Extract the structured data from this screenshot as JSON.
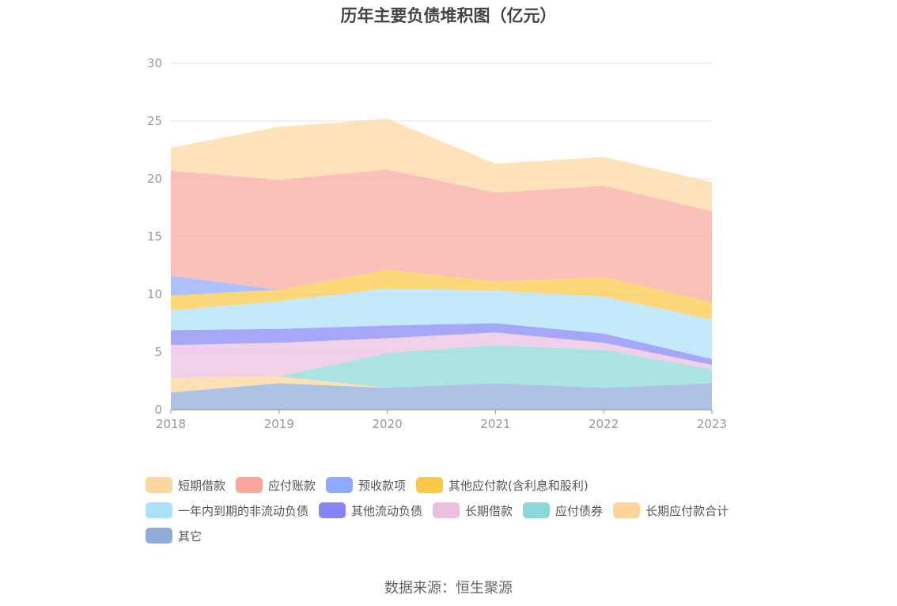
{
  "chart_data": {
    "type": "area",
    "stacked": true,
    "title": "历年主要负债堆积图（亿元）",
    "x": [
      "2018",
      "2019",
      "2020",
      "2021",
      "2022",
      "2023"
    ],
    "ylim": [
      0,
      30
    ],
    "yticks": [
      "0",
      "5",
      "10",
      "15",
      "20",
      "25",
      "30"
    ],
    "grid": true,
    "legend_position": "bottom",
    "series": [
      {
        "name": "其它",
        "color": "#8fabd8",
        "values": [
          1.5,
          2.3,
          1.9,
          2.3,
          1.9,
          2.3
        ]
      },
      {
        "name": "长期应付款合计",
        "color": "#fdd49a",
        "values": [
          1.3,
          0.6,
          0,
          0,
          0,
          0
        ]
      },
      {
        "name": "应付债券",
        "color": "#8ad9d8",
        "values": [
          0,
          0,
          3.0,
          3.3,
          3.3,
          1.2
        ]
      },
      {
        "name": "长期借款",
        "color": "#ecbfe0",
        "values": [
          2.8,
          2.9,
          1.3,
          1.1,
          0.6,
          0.4
        ]
      },
      {
        "name": "其他流动负债",
        "color": "#8386f4",
        "values": [
          1.3,
          1.2,
          1.1,
          0.8,
          0.8,
          0.5
        ]
      },
      {
        "name": "一年内到期的非流动负债",
        "color": "#ace1fa",
        "values": [
          1.7,
          2.4,
          3.2,
          2.8,
          3.2,
          3.4
        ]
      },
      {
        "name": "其他应付款(含利息和股利)",
        "color": "#fbc948",
        "values": [
          1.3,
          1.0,
          1.6,
          0.8,
          1.7,
          1.5
        ]
      },
      {
        "name": "预收款项",
        "color": "#8fa9fb",
        "values": [
          1.7,
          0,
          0,
          0,
          0,
          0
        ]
      },
      {
        "name": "应付账款",
        "color": "#f9a79d",
        "values": [
          9.1,
          9.5,
          8.7,
          7.7,
          7.9,
          7.9
        ]
      },
      {
        "name": "短期借款",
        "color": "#fdd7a2",
        "values": [
          2.0,
          4.6,
          4.4,
          2.5,
          2.5,
          2.5
        ]
      }
    ]
  },
  "legend_rows": [
    [
      {
        "label": "短期借款",
        "color": "#fdd7a2"
      },
      {
        "label": "应付账款",
        "color": "#f9a79d"
      },
      {
        "label": "预收款项",
        "color": "#8fa9fb"
      },
      {
        "label": "其他应付款(含利息和股利)",
        "color": "#fbc948"
      }
    ],
    [
      {
        "label": "一年内到期的非流动负债",
        "color": "#ace1fa"
      },
      {
        "label": "其他流动负债",
        "color": "#8386f4"
      },
      {
        "label": "长期借款",
        "color": "#ecbfe0"
      },
      {
        "label": "应付债券",
        "color": "#8ad9d8"
      },
      {
        "label": "长期应付款合计",
        "color": "#fdd49a"
      }
    ],
    [
      {
        "label": "其它",
        "color": "#8fabd8"
      }
    ]
  ],
  "source": "数据来源：恒生聚源"
}
